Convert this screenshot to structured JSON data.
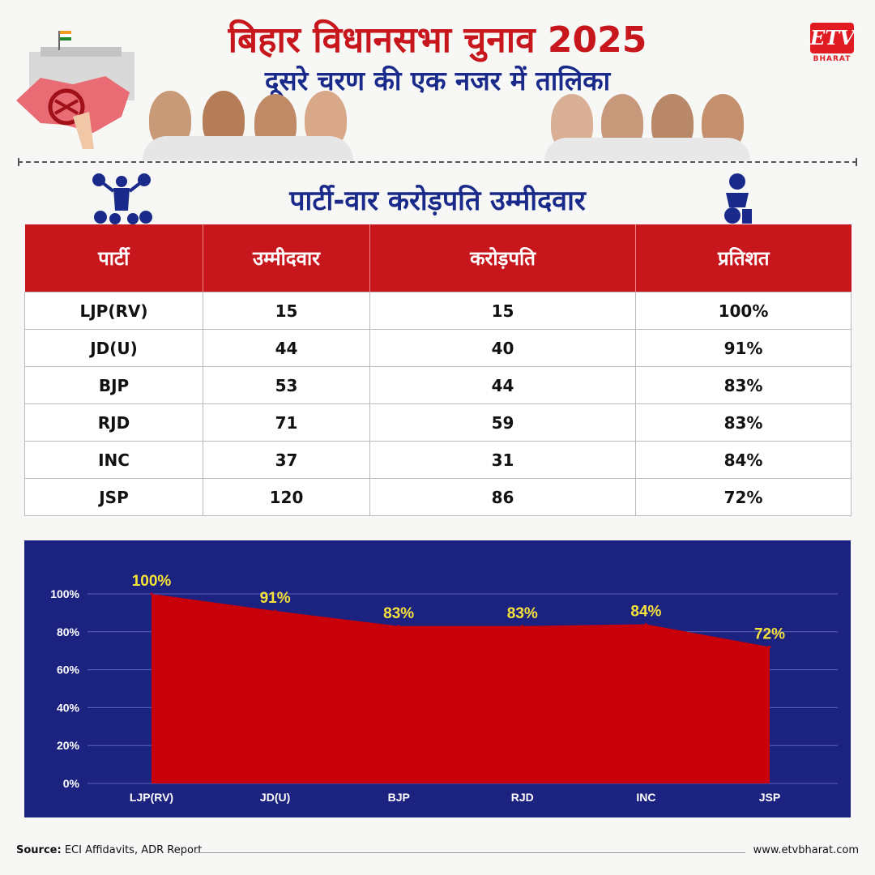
{
  "header": {
    "title": "बिहार विधानसभा चुनाव 2025",
    "subtitle": "दूसरे चरण की एक नजर में तालिका",
    "section_title": "पार्टी-वार करोड़पति  उम्मीदवार",
    "logo_text": "ETV",
    "logo_sub": "BHARAT"
  },
  "table": {
    "columns": [
      "पार्टी",
      "उम्मीदवार",
      "करोड़पति",
      "प्रतिशत"
    ],
    "rows": [
      [
        "LJP(RV)",
        "15",
        "15",
        "100%"
      ],
      [
        "JD(U)",
        "44",
        "40",
        "91%"
      ],
      [
        "BJP",
        "53",
        "44",
        "83%"
      ],
      [
        "RJD",
        "71",
        "59",
        "83%"
      ],
      [
        "INC",
        "37",
        "31",
        "84%"
      ],
      [
        "JSP",
        "120",
        "86",
        "72%"
      ]
    ]
  },
  "chart_data": {
    "type": "area",
    "categories": [
      "LJP(RV)",
      "JD(U)",
      "BJP",
      "RJD",
      "INC",
      "JSP"
    ],
    "values": [
      100,
      91,
      83,
      83,
      84,
      72
    ],
    "data_labels": [
      "100%",
      "91%",
      "83%",
      "83%",
      "84%",
      "72%"
    ],
    "y_ticks": [
      "0%",
      "20%",
      "40%",
      "60%",
      "80%",
      "100%"
    ],
    "ylim": [
      0,
      100
    ],
    "grid": true,
    "colors": {
      "area": "#c8000a",
      "background": "#1c2280",
      "label": "#f5e23a"
    }
  },
  "footer": {
    "source_label": "Source:",
    "source_text": "ECI Affidavits, ADR Report",
    "url": "www.etvbharat.com"
  }
}
